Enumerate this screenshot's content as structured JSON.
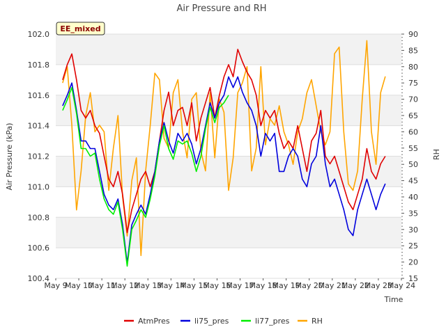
{
  "chart_data": {
    "type": "line",
    "title": "Air Pressure and RH",
    "xlabel": "Time",
    "ylabel": "Air Pressure (kPa)",
    "y2label": "RH",
    "badge": "EE_mixed",
    "x_ticks": [
      "May 9",
      "May 10",
      "May 11",
      "May 12",
      "May 13",
      "May 14",
      "May 15",
      "May 16",
      "May 17",
      "May 18",
      "May 19",
      "May 20",
      "May 21",
      "May 22",
      "May 23",
      "May 24"
    ],
    "xlim": [
      9,
      24
    ],
    "ylim": [
      100.4,
      102.0
    ],
    "y_ticks": [
      "100.4",
      "100.6",
      "100.8",
      "101.0",
      "101.2",
      "101.4",
      "101.6",
      "101.8",
      "102.0"
    ],
    "y2lim": [
      15,
      90
    ],
    "y2_ticks": [
      "15",
      "20",
      "25",
      "30",
      "35",
      "40",
      "45",
      "50",
      "55",
      "60",
      "65",
      "70",
      "75",
      "80",
      "85",
      "90"
    ],
    "grid": true,
    "legend_position": "bottom",
    "series": [
      {
        "name": "AtmPres",
        "color": "#e00000",
        "axis": "left",
        "x": [
          9.3,
          9.5,
          9.7,
          9.9,
          10.1,
          10.3,
          10.5,
          10.7,
          10.9,
          11.1,
          11.3,
          11.5,
          11.7,
          11.9,
          12.1,
          12.3,
          12.5,
          12.7,
          12.9,
          13.1,
          13.3,
          13.5,
          13.7,
          13.9,
          14.1,
          14.3,
          14.5,
          14.7,
          14.9,
          15.1,
          15.3,
          15.5,
          15.7,
          15.9,
          16.1,
          16.3,
          16.5,
          16.7,
          16.9,
          17.1,
          17.3,
          17.5,
          17.7,
          17.9,
          18.1,
          18.3,
          18.5,
          18.7,
          18.9,
          19.1,
          19.3,
          19.5,
          19.7,
          19.9,
          20.1,
          20.3,
          20.5,
          20.7,
          20.9,
          21.1,
          21.3,
          21.5,
          21.7,
          21.9,
          22.1,
          22.3,
          22.5,
          22.7,
          22.9,
          23.1,
          23.3
        ],
        "y": [
          101.7,
          101.8,
          101.87,
          101.7,
          101.5,
          101.45,
          101.5,
          101.4,
          101.35,
          101.2,
          101.05,
          101.0,
          101.1,
          100.95,
          100.7,
          100.85,
          100.95,
          101.05,
          101.1,
          101.0,
          101.1,
          101.3,
          101.5,
          101.62,
          101.4,
          101.5,
          101.52,
          101.4,
          101.55,
          101.3,
          101.45,
          101.55,
          101.65,
          101.45,
          101.6,
          101.72,
          101.8,
          101.72,
          101.9,
          101.82,
          101.75,
          101.7,
          101.6,
          101.4,
          101.5,
          101.45,
          101.5,
          101.35,
          101.25,
          101.3,
          101.25,
          101.4,
          101.25,
          101.1,
          101.3,
          101.35,
          101.5,
          101.2,
          101.15,
          101.2,
          101.1,
          101.0,
          100.9,
          100.85,
          100.95,
          101.05,
          101.25,
          101.1,
          101.05,
          101.15,
          101.2
        ]
      },
      {
        "name": "li75_pres",
        "color": "#0000dd",
        "axis": "left",
        "x": [
          9.3,
          9.5,
          9.7,
          9.9,
          10.1,
          10.3,
          10.5,
          10.7,
          10.9,
          11.1,
          11.3,
          11.5,
          11.7,
          11.9,
          12.1,
          12.3,
          12.5,
          12.7,
          12.9,
          13.1,
          13.3,
          13.5,
          13.7,
          13.9,
          14.1,
          14.3,
          14.5,
          14.7,
          14.9,
          15.1,
          15.3,
          15.5,
          15.7,
          15.9,
          16.1,
          16.3,
          16.5,
          16.7,
          16.9,
          17.1,
          17.3,
          17.5,
          17.7,
          17.9,
          18.1,
          18.3,
          18.5,
          18.7,
          18.9,
          19.1,
          19.3,
          19.5,
          19.7,
          19.9,
          20.1,
          20.3,
          20.5,
          20.7,
          20.9,
          21.1,
          21.3,
          21.5,
          21.7,
          21.9,
          22.1,
          22.3,
          22.5,
          22.7,
          22.9,
          23.1,
          23.3
        ],
        "y": [
          101.53,
          101.6,
          101.68,
          101.5,
          101.3,
          101.3,
          101.25,
          101.25,
          101.1,
          100.95,
          100.88,
          100.85,
          100.92,
          100.75,
          100.5,
          100.75,
          100.82,
          100.88,
          100.82,
          100.95,
          101.1,
          101.3,
          101.42,
          101.3,
          101.22,
          101.35,
          101.3,
          101.35,
          101.28,
          101.15,
          101.25,
          101.4,
          101.55,
          101.45,
          101.55,
          101.6,
          101.72,
          101.65,
          101.72,
          101.62,
          101.55,
          101.5,
          101.4,
          101.2,
          101.35,
          101.3,
          101.35,
          101.1,
          101.1,
          101.2,
          101.25,
          101.2,
          101.05,
          101.0,
          101.15,
          101.2,
          101.4,
          101.15,
          101.0,
          101.05,
          100.95,
          100.85,
          100.72,
          100.68,
          100.85,
          100.95,
          101.05,
          100.95,
          100.85,
          100.95,
          101.02
        ]
      },
      {
        "name": "li77_pres",
        "color": "#00ee00",
        "axis": "left",
        "x": [
          9.3,
          9.5,
          9.7,
          9.9,
          10.1,
          10.3,
          10.5,
          10.7,
          10.9,
          11.1,
          11.3,
          11.5,
          11.7,
          11.9,
          12.1,
          12.3,
          12.5,
          12.7,
          12.9,
          13.1,
          13.3,
          13.5,
          13.7,
          13.9,
          14.1,
          14.3,
          14.5,
          14.7,
          14.9,
          15.1,
          15.3,
          15.5,
          15.7,
          15.9,
          16.1,
          16.3,
          16.5
        ],
        "y": [
          101.5,
          101.57,
          101.65,
          101.48,
          101.25,
          101.25,
          101.2,
          101.22,
          101.05,
          100.92,
          100.85,
          100.82,
          100.9,
          100.72,
          100.48,
          100.72,
          100.78,
          100.85,
          100.8,
          100.92,
          101.07,
          101.27,
          101.4,
          101.25,
          101.18,
          101.3,
          101.28,
          101.3,
          101.22,
          101.1,
          101.2,
          101.38,
          101.52,
          101.42,
          101.52,
          101.55,
          101.6
        ]
      },
      {
        "name": "RH",
        "color": "#ffa500",
        "axis": "right",
        "x": [
          9.3,
          9.5,
          9.7,
          9.9,
          10.1,
          10.3,
          10.5,
          10.7,
          10.9,
          11.1,
          11.3,
          11.5,
          11.7,
          11.9,
          12.1,
          12.3,
          12.5,
          12.7,
          12.9,
          13.1,
          13.3,
          13.5,
          13.7,
          13.9,
          14.1,
          14.3,
          14.5,
          14.7,
          14.9,
          15.1,
          15.3,
          15.5,
          15.7,
          15.9,
          16.1,
          16.3,
          16.5,
          16.7,
          16.9,
          17.1,
          17.3,
          17.5,
          17.7,
          17.9,
          18.1,
          18.3,
          18.5,
          18.7,
          18.9,
          19.1,
          19.3,
          19.5,
          19.7,
          19.9,
          20.1,
          20.3,
          20.5,
          20.7,
          20.9,
          21.1,
          21.3,
          21.5,
          21.7,
          21.9,
          22.1,
          22.3,
          22.5,
          22.7,
          22.9,
          23.1,
          23.3
        ],
        "y": [
          75,
          80,
          62,
          36,
          48,
          65,
          72,
          60,
          62,
          60,
          42,
          55,
          65,
          40,
          28,
          45,
          52,
          22,
          48,
          62,
          78,
          76,
          58,
          55,
          72,
          76,
          60,
          52,
          70,
          72,
          54,
          48,
          72,
          52,
          70,
          66,
          42,
          52,
          72,
          75,
          80,
          48,
          55,
          80,
          56,
          64,
          62,
          68,
          60,
          56,
          50,
          60,
          64,
          72,
          76,
          68,
          60,
          56,
          60,
          84,
          86,
          60,
          44,
          42,
          48,
          70,
          88,
          60,
          50,
          72,
          77
        ]
      }
    ]
  }
}
